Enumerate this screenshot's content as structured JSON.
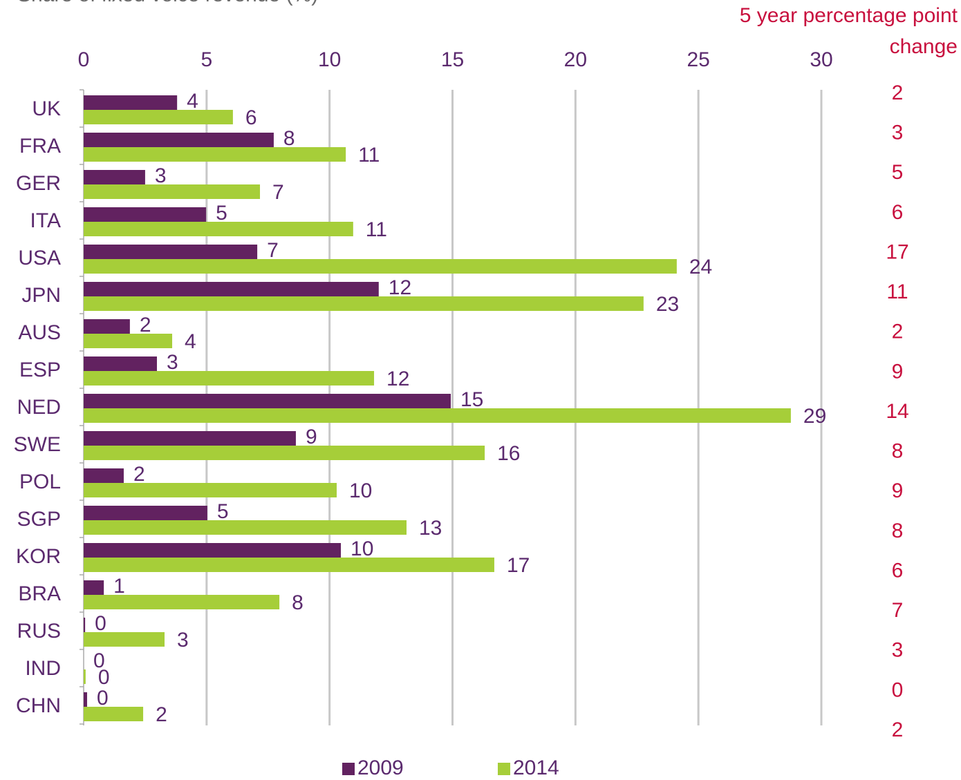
{
  "chart_data": {
    "type": "bar",
    "orientation": "horizontal",
    "title": "Share of fixed voice revenue (%)",
    "categories": [
      "UK",
      "FRA",
      "GER",
      "ITA",
      "USA",
      "JPN",
      "AUS",
      "ESP",
      "NED",
      "SWE",
      "POL",
      "SGP",
      "KOR",
      "BRA",
      "RUS",
      "IND",
      "CHN"
    ],
    "series": [
      {
        "name": "2009",
        "color": "#622260",
        "values": [
          3.8,
          7.73,
          2.5,
          4.98,
          7.06,
          12.0,
          1.88,
          2.98,
          14.93,
          8.63,
          1.63,
          5.03,
          10.46,
          0.82,
          0.06,
          0,
          0.14
        ],
        "value_labels": [
          "4",
          "8",
          "3",
          "5",
          "7",
          "12",
          "2",
          "3",
          "15",
          "9",
          "2",
          "5",
          "10",
          "1",
          "0",
          "0",
          "0"
        ]
      },
      {
        "name": "2014",
        "color": "#a6ce39",
        "values": [
          6.07,
          10.66,
          7.17,
          10.96,
          24.12,
          22.77,
          3.6,
          11.81,
          28.76,
          16.31,
          10.29,
          13.13,
          16.7,
          7.96,
          3.29,
          0.08,
          2.42
        ],
        "value_labels": [
          "6",
          "11",
          "7",
          "11",
          "24",
          "23",
          "4",
          "12",
          "29",
          "16",
          "10",
          "13",
          "17",
          "8",
          "3",
          "0",
          "2"
        ]
      }
    ],
    "xlim": [
      0,
      30
    ],
    "xticks": [
      0,
      5,
      10,
      15,
      20,
      25,
      30
    ],
    "grid": true,
    "legend": "bottom",
    "change_title": [
      "5 year percentage point",
      "change"
    ],
    "change_values": [
      2,
      3,
      5,
      6,
      17,
      11,
      2,
      9,
      14,
      8,
      9,
      8,
      6,
      7,
      3,
      0,
      2
    ],
    "change_color": "#c8103e"
  }
}
